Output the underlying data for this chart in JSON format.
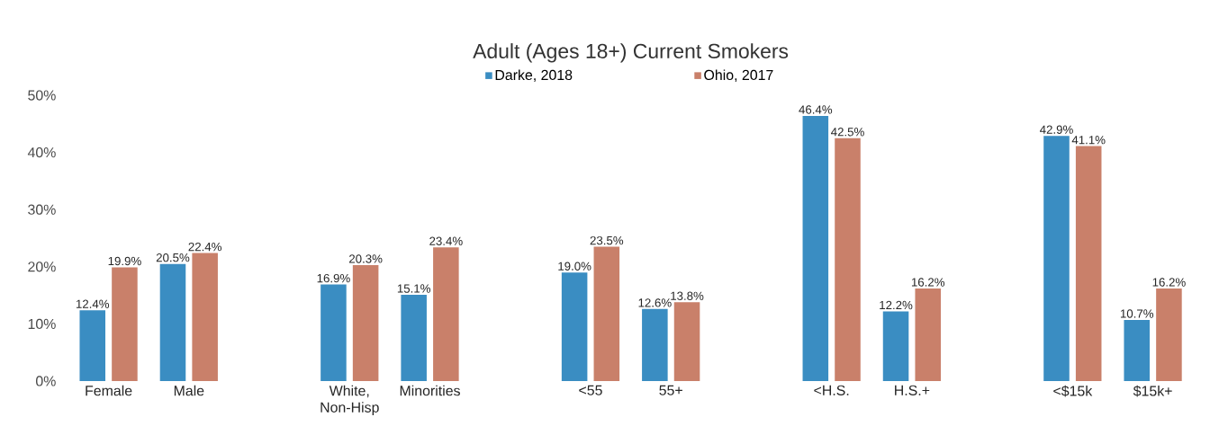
{
  "chart_data": {
    "type": "bar",
    "title": "Adult (Ages 18+) Current Smokers",
    "categories": [
      "Female",
      "Male",
      null,
      "White, Non-Hisp",
      "Minorities",
      null,
      "<55",
      "55+",
      null,
      "<H.S.",
      "H.S.+",
      null,
      "<$15k",
      "$15k+"
    ],
    "series": [
      {
        "name": "Darke, 2018",
        "color": "#3a8dc2",
        "values": [
          12.4,
          20.5,
          null,
          16.9,
          15.1,
          null,
          19.0,
          12.6,
          null,
          46.4,
          12.2,
          null,
          42.9,
          10.7
        ],
        "value_labels": [
          "12.4%",
          "20.5%",
          null,
          "16.9%",
          "15.1%",
          null,
          "19.0%",
          "12.6%",
          null,
          "46.4%",
          "12.2%",
          null,
          "42.9%",
          "10.7%"
        ]
      },
      {
        "name": "Ohio, 2017",
        "color": "#c9806a",
        "values": [
          19.9,
          22.4,
          null,
          20.3,
          23.4,
          null,
          23.5,
          13.8,
          null,
          42.5,
          16.2,
          null,
          41.1,
          16.2
        ],
        "value_labels": [
          "19.9%",
          "22.4%",
          null,
          "20.3%",
          "23.4%",
          null,
          "23.5%",
          "13.8%",
          null,
          "42.5%",
          "16.2%",
          null,
          "41.1%",
          "16.2%"
        ]
      }
    ],
    "ylim": [
      0,
      50
    ],
    "yticks": [
      {
        "value": 0,
        "label": "0%"
      },
      {
        "value": 10,
        "label": "10%"
      },
      {
        "value": 20,
        "label": "20%"
      },
      {
        "value": 30,
        "label": "30%"
      },
      {
        "value": 40,
        "label": "40%"
      },
      {
        "value": 50,
        "label": "50%"
      }
    ],
    "legend": "top"
  }
}
